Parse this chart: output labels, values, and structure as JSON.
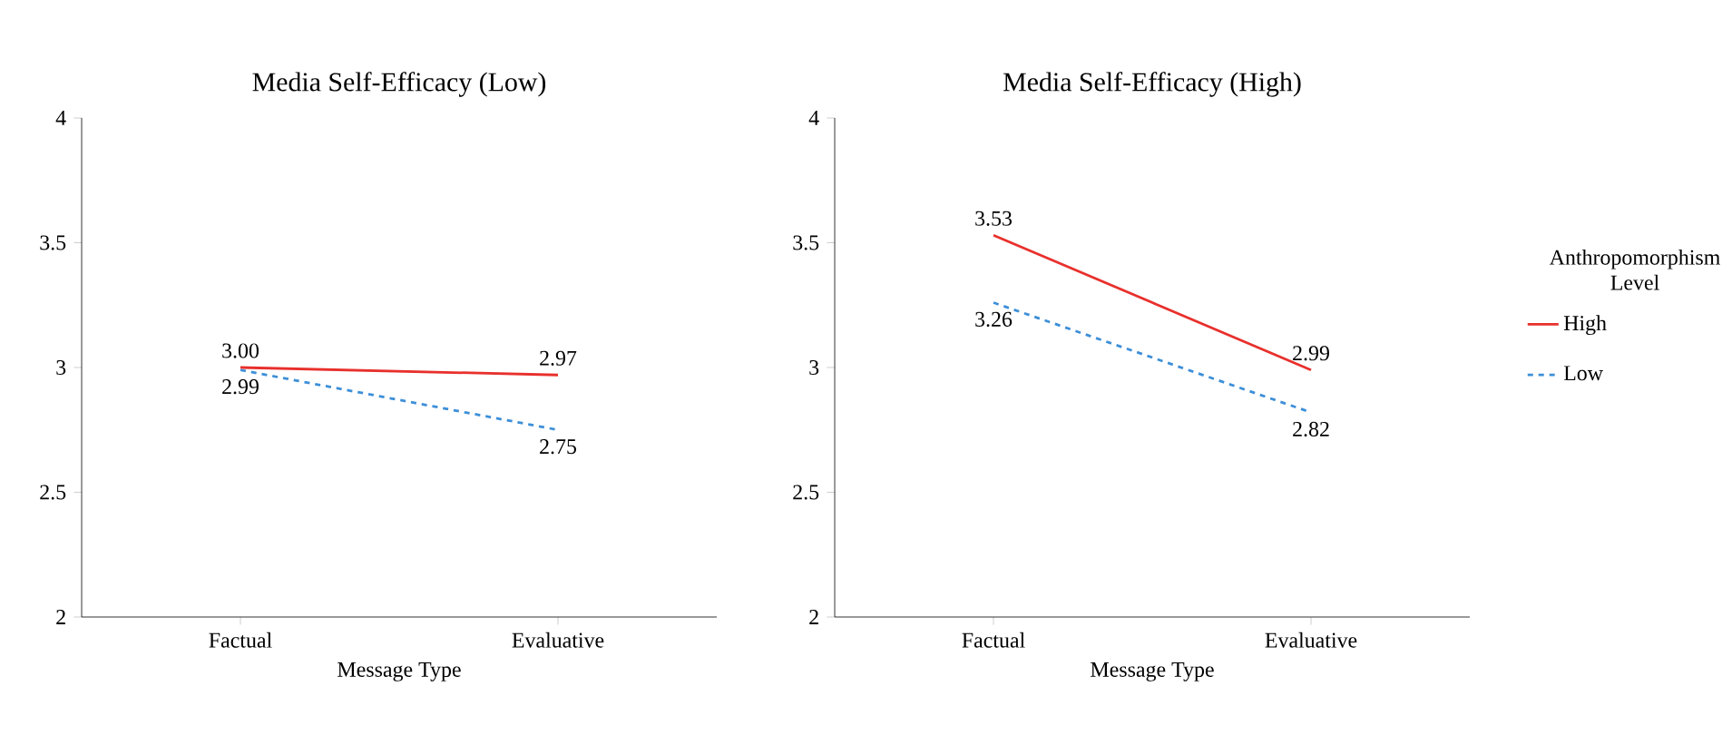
{
  "chart_data": [
    {
      "type": "line",
      "title": "Media Self-Efficacy (Low)",
      "xlabel": "Message Type",
      "categories": [
        "Factual",
        "Evaluative"
      ],
      "ylim": [
        2,
        4
      ],
      "yticks": [
        2,
        2.5,
        3,
        3.5,
        4
      ],
      "grid": false,
      "series": [
        {
          "color": "#e8302c",
          "line_style": "solid",
          "values": [
            3.0,
            2.97
          ],
          "value_labels": [
            "3.00",
            "2.97"
          ]
        },
        {
          "color": "#3d8fd8",
          "line_style": "dashed",
          "values": [
            2.99,
            2.75
          ],
          "value_labels": [
            "2.99",
            "2.75"
          ]
        }
      ]
    },
    {
      "type": "line",
      "title": "Media Self-Efficacy (High)",
      "xlabel": "Message Type",
      "categories": [
        "Factual",
        "Evaluative"
      ],
      "ylim": [
        2,
        4
      ],
      "yticks": [
        2,
        2.5,
        3,
        3.5,
        4
      ],
      "grid": false,
      "legend": "right",
      "legend_title": "Anthropomorphism Level",
      "series": [
        {
          "name": "High",
          "color": "#e8302c",
          "line_style": "solid",
          "values": [
            3.53,
            2.99
          ],
          "value_labels": [
            "3.53",
            "2.99"
          ]
        },
        {
          "name": "Low",
          "color": "#3d8fd8",
          "line_style": "dashed",
          "values": [
            3.26,
            2.82
          ],
          "value_labels": [
            "3.26",
            "2.82"
          ]
        }
      ]
    }
  ]
}
